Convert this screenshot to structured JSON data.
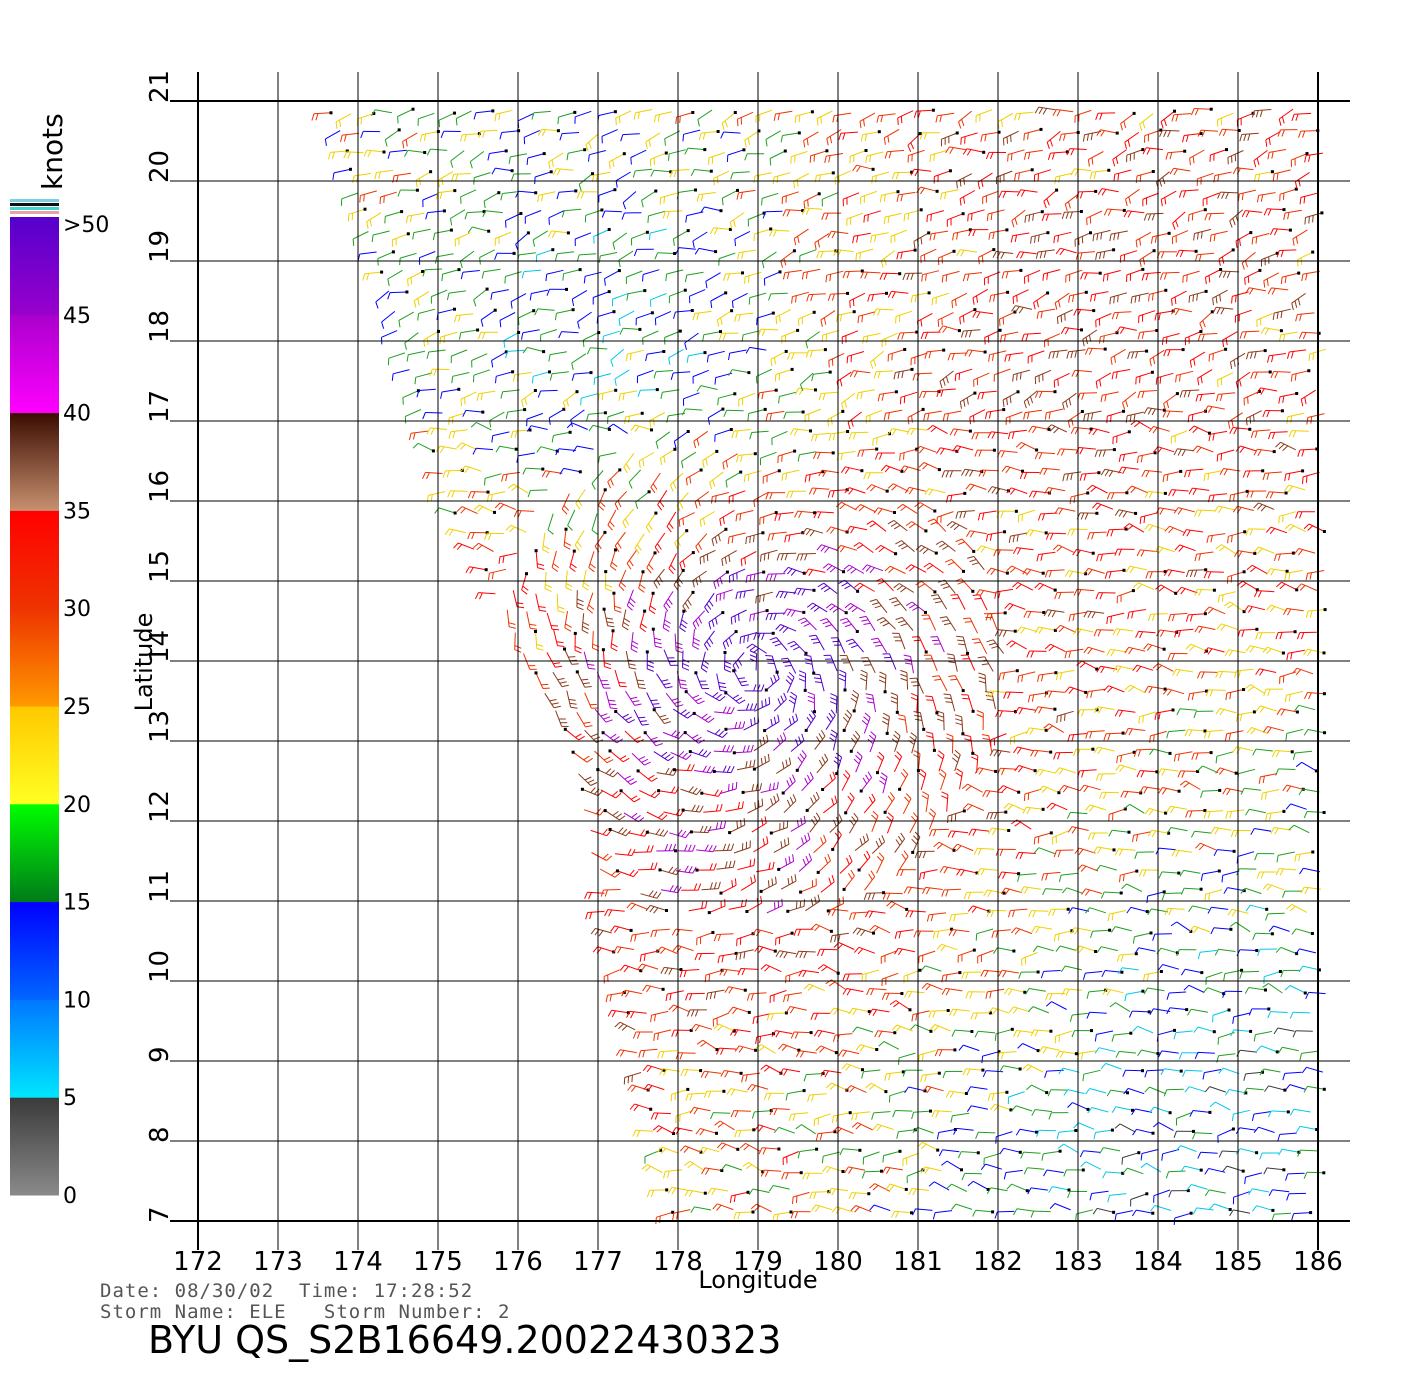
{
  "scale": {
    "unit": "knots",
    "labels": [
      ">50",
      "45",
      "40",
      "35",
      "30",
      "25",
      "20",
      "15",
      "10",
      "5",
      "0"
    ],
    "bands": [
      {
        "from": 0,
        "to": 5,
        "top": "#3a3a3a",
        "bottom": "#8a8a8a"
      },
      {
        "from": 5,
        "to": 10,
        "top": "#0077ff",
        "bottom": "#00e6ff"
      },
      {
        "from": 10,
        "to": 15,
        "top": "#0000ff",
        "bottom": "#0066ff"
      },
      {
        "from": 15,
        "to": 20,
        "top": "#00ff00",
        "bottom": "#007a1a"
      },
      {
        "from": 20,
        "to": 25,
        "top": "#ffc800",
        "bottom": "#ffff22"
      },
      {
        "from": 25,
        "to": 30,
        "top": "#ee3300",
        "bottom": "#ff9900"
      },
      {
        "from": 30,
        "to": 35,
        "top": "#ff0000",
        "bottom": "#ee3300"
      },
      {
        "from": 35,
        "to": 40,
        "top": "#3a0c00",
        "bottom": "#c89070"
      },
      {
        "from": 40,
        "to": 45,
        "top": "#aa00cc",
        "bottom": "#ff00ff"
      },
      {
        "from": 45,
        "to": 50,
        "top": "#5500cc",
        "bottom": "#9900cc"
      }
    ]
  },
  "map": {
    "lon_range": [
      172,
      186
    ],
    "lat_range": [
      7,
      21
    ],
    "lon_ticks": [
      "172",
      "173",
      "174",
      "175",
      "176",
      "177",
      "178",
      "179",
      "180",
      "181",
      "182",
      "183",
      "184",
      "185",
      "186"
    ],
    "lat_ticks": [
      "7",
      "8",
      "9",
      "10",
      "11",
      "12",
      "13",
      "14",
      "15",
      "16",
      "17",
      "18",
      "19",
      "20",
      "21"
    ],
    "xlabel": "Longitude",
    "ylabel": "Latitude",
    "swath_left_edge": [
      [
        173.6,
        21
      ],
      [
        175.1,
        16
      ],
      [
        176.6,
        13
      ],
      [
        177.9,
        7
      ]
    ],
    "storm_center": {
      "lon": 178.9,
      "lat": 13.9
    },
    "wind_regions": [
      {
        "desc": "cyclonic circulation core",
        "lon": 179.0,
        "lat": 13.8,
        "speed_knots": 42
      },
      {
        "desc": "northeast band",
        "lon": 183.0,
        "lat": 18.6,
        "speed_knots": 33
      },
      {
        "desc": "northwest calm",
        "lon": 177.5,
        "lat": 18.0,
        "speed_knots": 12
      },
      {
        "desc": "southeast light",
        "lon": 185.0,
        "lat": 8.0,
        "speed_knots": 9
      }
    ]
  },
  "footer": {
    "line1": "Date: 08/30/02  Time: 17:28:52",
    "line2": "Storm Name: ELE   Storm Number: 2",
    "product_id": "BYU QS_S2B16649.20022430323"
  }
}
